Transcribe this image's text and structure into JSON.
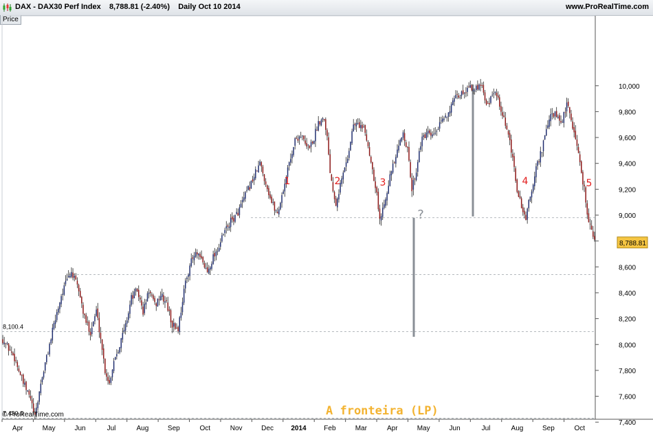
{
  "header": {
    "title": "DAX - DAX30 Perf Index",
    "last": "8,788.81 (-2.40%)",
    "period": "Daily  Oct 10 2014",
    "site": "www.ProRealTime.com",
    "icon": "candlestick-chart-icon"
  },
  "price_tab": "Price",
  "copyright": "© ProRealTime.com",
  "footer_caption": "A fronteira (LP)",
  "colors": {
    "up": "#1f2d6e",
    "down": "#8b1515",
    "annotation": "#e21b1b",
    "caption": "#f3b331",
    "guides": "#8a8f96",
    "price_box": "#f5c542"
  },
  "chart_data": {
    "type": "candlestick",
    "instrument": "DAX - DAX30 Perf Index",
    "ylim": [
      7360,
      10200
    ],
    "y_ticks": [
      7400,
      7600,
      7800,
      8000,
      8200,
      8400,
      8600,
      8800,
      9000,
      9200,
      9400,
      9600,
      9800,
      10000
    ],
    "y_tick_labels": [
      "7,400",
      "7,600",
      "7,800",
      "8,000",
      "8,200",
      "8,400",
      "8,600",
      "8,800",
      "9,000",
      "9,200",
      "9,400",
      "9,600",
      "9,800",
      "10,000"
    ],
    "month_labels": [
      "Apr",
      "May",
      "Jun",
      "Jul",
      "Aug",
      "Sep",
      "Oct",
      "Nov",
      "Dec",
      "2014",
      "Feb",
      "Mar",
      "Apr",
      "May",
      "Jun",
      "Jul",
      "Aug",
      "Sep",
      "Oct"
    ],
    "last_price": 8788.81,
    "last_price_label": "8,788.81",
    "levels": [
      {
        "value": 8100.4,
        "label": "8,100.4"
      },
      {
        "value": 7430.6,
        "label": "7,430.6"
      },
      {
        "value": 8540,
        "label": ""
      },
      {
        "value": 8980,
        "label": ""
      }
    ],
    "annotations": [
      {
        "text": "1",
        "month": "Dec"
      },
      {
        "text": "2",
        "month": "Feb"
      },
      {
        "text": "3",
        "month": "Mar"
      },
      {
        "text": "4",
        "month": "Aug"
      },
      {
        "text": "5",
        "month": "Oct"
      },
      {
        "text": "?",
        "month": "Apr"
      }
    ],
    "path": [
      [
        0,
        8040
      ],
      [
        8,
        7900
      ],
      [
        14,
        7700
      ],
      [
        19,
        7580
      ],
      [
        22,
        7430
      ],
      [
        26,
        7700
      ],
      [
        31,
        7950
      ],
      [
        36,
        8200
      ],
      [
        40,
        8380
      ],
      [
        44,
        8500
      ],
      [
        47,
        8560
      ],
      [
        52,
        8420
      ],
      [
        56,
        8200
      ],
      [
        60,
        8100
      ],
      [
        64,
        8260
      ],
      [
        67,
        8050
      ],
      [
        70,
        7800
      ],
      [
        73,
        7700
      ],
      [
        76,
        7880
      ],
      [
        80,
        8000
      ],
      [
        84,
        8150
      ],
      [
        88,
        8360
      ],
      [
        92,
        8420
      ],
      [
        96,
        8250
      ],
      [
        100,
        8420
      ],
      [
        104,
        8300
      ],
      [
        108,
        8380
      ],
      [
        112,
        8320
      ],
      [
        116,
        8150
      ],
      [
        120,
        8120
      ],
      [
        124,
        8420
      ],
      [
        128,
        8620
      ],
      [
        132,
        8700
      ],
      [
        136,
        8650
      ],
      [
        140,
        8560
      ],
      [
        144,
        8680
      ],
      [
        148,
        8760
      ],
      [
        152,
        8880
      ],
      [
        156,
        8950
      ],
      [
        160,
        9000
      ],
      [
        164,
        9100
      ],
      [
        168,
        9200
      ],
      [
        172,
        9300
      ],
      [
        176,
        9400
      ],
      [
        180,
        9250
      ],
      [
        184,
        9100
      ],
      [
        188,
        9010
      ],
      [
        192,
        9200
      ],
      [
        196,
        9400
      ],
      [
        200,
        9580
      ],
      [
        204,
        9620
      ],
      [
        208,
        9520
      ],
      [
        212,
        9560
      ],
      [
        216,
        9720
      ],
      [
        220,
        9760
      ],
      [
        222,
        9600
      ],
      [
        224,
        9350
      ],
      [
        226,
        9200
      ],
      [
        228,
        9100
      ],
      [
        232,
        9280
      ],
      [
        236,
        9450
      ],
      [
        240,
        9700
      ],
      [
        244,
        9700
      ],
      [
        248,
        9640
      ],
      [
        252,
        9420
      ],
      [
        256,
        9170
      ],
      [
        258,
        8950
      ],
      [
        261,
        9100
      ],
      [
        265,
        9300
      ],
      [
        270,
        9480
      ],
      [
        274,
        9650
      ],
      [
        277,
        9500
      ],
      [
        280,
        9200
      ],
      [
        283,
        9350
      ],
      [
        286,
        9560
      ],
      [
        290,
        9630
      ],
      [
        294,
        9600
      ],
      [
        298,
        9670
      ],
      [
        302,
        9750
      ],
      [
        306,
        9820
      ],
      [
        310,
        9900
      ],
      [
        314,
        9940
      ],
      [
        318,
        9980
      ],
      [
        320,
        10030
      ],
      [
        322,
        9940
      ],
      [
        325,
        10000
      ],
      [
        328,
        10020
      ],
      [
        331,
        9850
      ],
      [
        334,
        9900
      ],
      [
        338,
        9950
      ],
      [
        340,
        9820
      ],
      [
        344,
        9700
      ],
      [
        348,
        9500
      ],
      [
        352,
        9200
      ],
      [
        355,
        9060
      ],
      [
        358,
        8980
      ],
      [
        362,
        9200
      ],
      [
        366,
        9400
      ],
      [
        370,
        9550
      ],
      [
        374,
        9750
      ],
      [
        378,
        9780
      ],
      [
        382,
        9700
      ],
      [
        386,
        9850
      ],
      [
        388,
        9780
      ],
      [
        392,
        9600
      ],
      [
        395,
        9400
      ],
      [
        398,
        9200
      ],
      [
        400,
        9020
      ],
      [
        402,
        8920
      ],
      [
        405,
        8790
      ]
    ]
  }
}
